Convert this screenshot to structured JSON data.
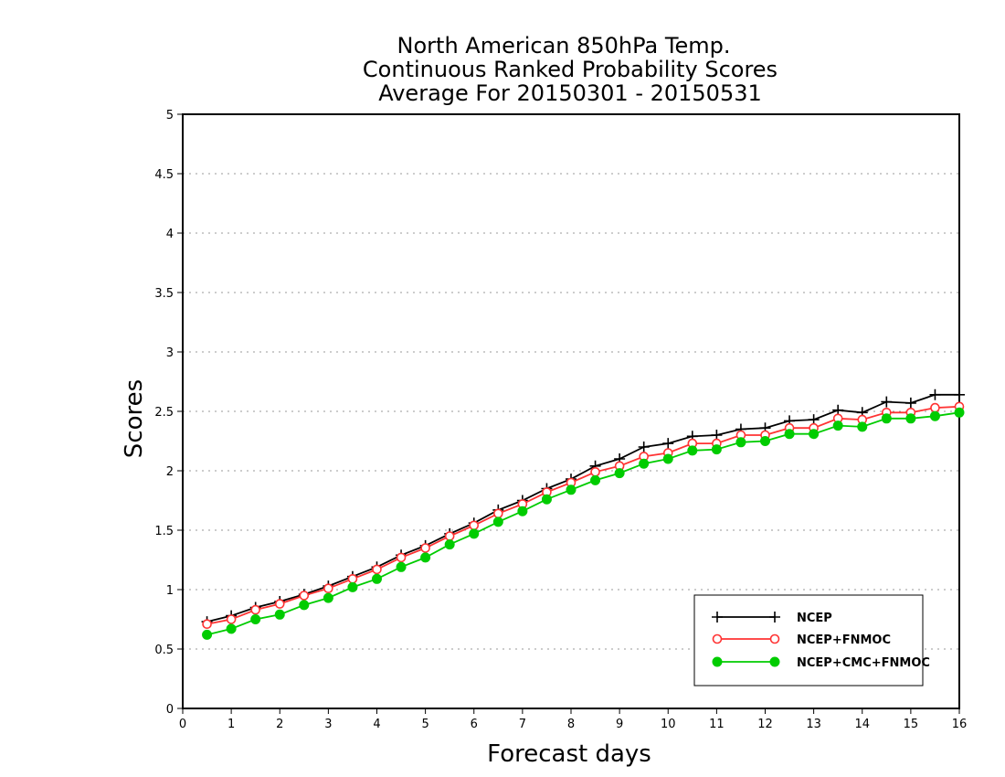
{
  "chart_data": {
    "type": "line",
    "title_lines": [
      "North American 850hPa Temp.",
      "Continuous Ranked Probability Scores",
      "Average For 20150301 - 20150531"
    ],
    "xlabel": "Forecast days",
    "ylabel": "Scores",
    "xlim": [
      0,
      16
    ],
    "ylim": [
      0,
      5
    ],
    "x_ticks": [
      0,
      1,
      2,
      3,
      4,
      5,
      6,
      7,
      8,
      9,
      10,
      11,
      12,
      13,
      14,
      15,
      16
    ],
    "y_ticks": [
      0,
      0.5,
      1,
      1.5,
      2,
      2.5,
      3,
      3.5,
      4,
      4.5,
      5
    ],
    "grid": "horizontal dotted",
    "legend_position": "bottom-right",
    "x": [
      0.5,
      1,
      1.5,
      2,
      2.5,
      3,
      3.5,
      4,
      4.5,
      5,
      5.5,
      6,
      6.5,
      7,
      7.5,
      8,
      8.5,
      9,
      9.5,
      10,
      10.5,
      11,
      11.5,
      12,
      12.5,
      13,
      13.5,
      14,
      14.5,
      15,
      15.5,
      16
    ],
    "series": [
      {
        "name": "NCEP",
        "color": "#000000",
        "marker": "plus",
        "values": [
          0.73,
          0.78,
          0.85,
          0.9,
          0.96,
          1.03,
          1.11,
          1.19,
          1.29,
          1.37,
          1.47,
          1.56,
          1.67,
          1.75,
          1.85,
          1.93,
          2.04,
          2.1,
          2.2,
          2.23,
          2.29,
          2.3,
          2.35,
          2.36,
          2.42,
          2.43,
          2.51,
          2.49,
          2.58,
          2.57,
          2.64,
          2.64
        ]
      },
      {
        "name": "NCEP+FNMOC",
        "color": "#ff3333",
        "marker": "open-circle",
        "values": [
          0.71,
          0.75,
          0.83,
          0.88,
          0.95,
          1.01,
          1.09,
          1.17,
          1.27,
          1.35,
          1.45,
          1.54,
          1.64,
          1.72,
          1.82,
          1.9,
          1.99,
          2.04,
          2.12,
          2.15,
          2.23,
          2.23,
          2.3,
          2.3,
          2.36,
          2.36,
          2.44,
          2.43,
          2.49,
          2.49,
          2.53,
          2.54
        ]
      },
      {
        "name": "NCEP+CMC+FNMOC",
        "color": "#00cc00",
        "marker": "filled-circle",
        "values": [
          0.62,
          0.67,
          0.75,
          0.79,
          0.87,
          0.93,
          1.02,
          1.09,
          1.19,
          1.27,
          1.38,
          1.47,
          1.57,
          1.66,
          1.76,
          1.84,
          1.92,
          1.98,
          2.06,
          2.1,
          2.17,
          2.18,
          2.24,
          2.25,
          2.31,
          2.31,
          2.38,
          2.37,
          2.44,
          2.44,
          2.46,
          2.49
        ]
      }
    ]
  }
}
